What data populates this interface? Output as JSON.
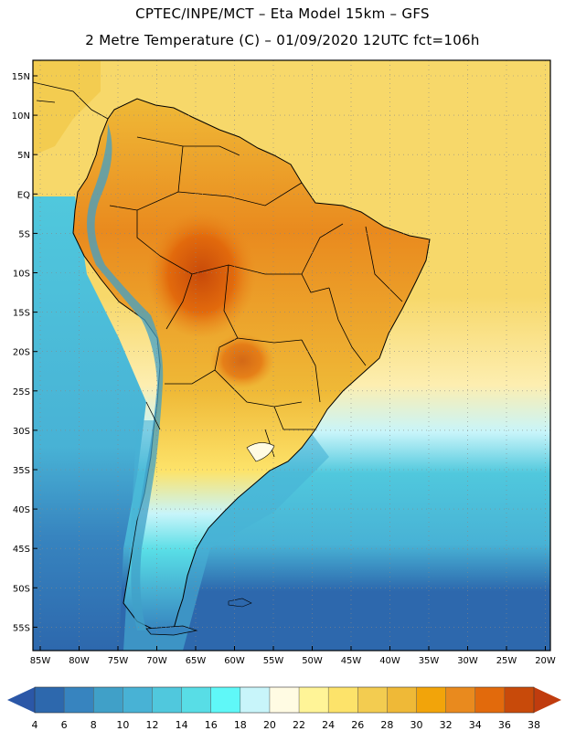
{
  "header": {
    "title_line1": "CPTEC/INPE/MCT –  Eta Model 15km – GFS",
    "title_line2": "2 Metre Temperature (C) – 01/09/2020 12UTC fct=106h"
  },
  "map": {
    "region": "South America",
    "lat_labels": [
      "15N",
      "10N",
      "5N",
      "EQ",
      "5S",
      "10S",
      "15S",
      "20S",
      "25S",
      "30S",
      "35S",
      "40S",
      "45S",
      "50S",
      "55S"
    ],
    "lon_labels": [
      "85W",
      "80W",
      "75W",
      "70W",
      "65W",
      "60W",
      "55W",
      "50W",
      "45W",
      "40W",
      "35W",
      "30W",
      "25W",
      "20W"
    ]
  },
  "legend": {
    "labels": [
      "4",
      "6",
      "8",
      "10",
      "12",
      "14",
      "16",
      "18",
      "20",
      "22",
      "24",
      "26",
      "28",
      "30",
      "32",
      "34",
      "36",
      "38"
    ],
    "colors": [
      "#2d68ad",
      "#3784bf",
      "#40a0c8",
      "#48b2d5",
      "#50c8dd",
      "#58dde6",
      "#5ff8f8",
      "#c8f5fa",
      "#fffbe3",
      "#fff497",
      "#fde36a",
      "#f3cc50",
      "#efb937",
      "#f2a40a",
      "#e98a1e",
      "#e26a0c",
      "#c84a0a"
    ],
    "low_arrow_color": "#2b57a7",
    "high_arrow_color": "#c03c0e"
  },
  "palette": {
    "ocean_tropical": "#f7d86a",
    "ocean_subtropical": "#fdeeb0",
    "ocean_mid": "#50c8dd",
    "ocean_south": "#2d68ad",
    "land_hot": "#e98a1e",
    "land_warm": "#f3cc50",
    "andes": "#48b2d5",
    "border_color": "#000000"
  }
}
